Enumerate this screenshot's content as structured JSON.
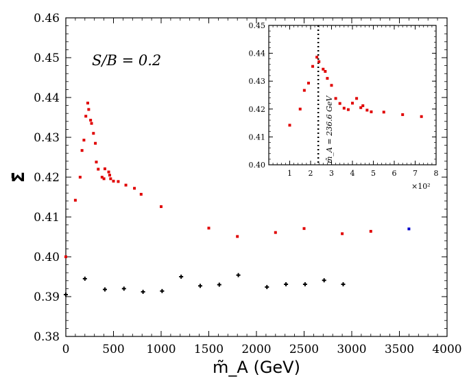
{
  "chart_data": [
    {
      "type": "scatter",
      "xlabel": "m̃_A (GeV)",
      "ylabel": "Σ̄",
      "xlim": [
        0,
        4000
      ],
      "ylim": [
        0.38,
        0.46
      ],
      "xticks": [
        "0",
        "500",
        "1000",
        "1500",
        "2000",
        "2500",
        "3000",
        "3500",
        "4000"
      ],
      "yticks": [
        "0.38",
        "0.39",
        "0.40",
        "0.41",
        "0.42",
        "0.43",
        "0.44",
        "0.45",
        "0.46"
      ],
      "annotation": "S/B = 0.2",
      "series": [
        {
          "color": "#e00000",
          "marker": "square",
          "points": [
            [
              0,
              0.4
            ],
            [
              100,
              0.4142
            ],
            [
              150,
              0.42
            ],
            [
              170,
              0.4267
            ],
            [
              190,
              0.4293
            ],
            [
              210,
              0.4353
            ],
            [
              230,
              0.4386
            ],
            [
              240,
              0.437
            ],
            [
              260,
              0.4343
            ],
            [
              270,
              0.4335
            ],
            [
              290,
              0.431
            ],
            [
              310,
              0.4285
            ],
            [
              320,
              0.4238
            ],
            [
              340,
              0.422
            ],
            [
              380,
              0.42
            ],
            [
              400,
              0.4196
            ],
            [
              410,
              0.4221
            ],
            [
              450,
              0.4213
            ],
            [
              460,
              0.4205
            ],
            [
              470,
              0.4196
            ],
            [
              500,
              0.419
            ],
            [
              550,
              0.4189
            ],
            [
              630,
              0.418
            ],
            [
              720,
              0.4172
            ],
            [
              790,
              0.4157
            ],
            [
              1000,
              0.4126
            ],
            [
              1500,
              0.4072
            ],
            [
              1800,
              0.4051
            ],
            [
              2200,
              0.4061
            ],
            [
              2500,
              0.4071
            ],
            [
              2900,
              0.4058
            ],
            [
              3200,
              0.4064
            ]
          ]
        },
        {
          "color": "#000000",
          "marker": "plus",
          "points": [
            [
              0,
              0.3905
            ],
            [
              200,
              0.3945
            ],
            [
              410,
              0.3918
            ],
            [
              610,
              0.392
            ],
            [
              810,
              0.3912
            ],
            [
              1010,
              0.3914
            ],
            [
              1210,
              0.395
            ],
            [
              1410,
              0.3927
            ],
            [
              1610,
              0.393
            ],
            [
              1810,
              0.3954
            ],
            [
              2110,
              0.3924
            ],
            [
              2310,
              0.3931
            ],
            [
              2510,
              0.3931
            ],
            [
              2710,
              0.3941
            ],
            [
              2910,
              0.3931
            ]
          ]
        },
        {
          "color": "#0000cc",
          "marker": "square",
          "points": [
            [
              3600,
              0.407
            ]
          ]
        }
      ]
    },
    {
      "type": "scatter",
      "position": "inset top-right",
      "xlim": [
        0,
        8
      ],
      "ylim": [
        0.4,
        0.45
      ],
      "xticks": [
        "1",
        "2",
        "3",
        "4",
        "5",
        "6",
        "7",
        "8"
      ],
      "yticks": [
        "0.40",
        "0.41",
        "0.42",
        "0.43",
        "0.44",
        "0.45"
      ],
      "x_multiplier": "×10²",
      "vline": {
        "x": 2.366,
        "style": "dotted",
        "label": "m̃_A = 236.6 GeV"
      },
      "series": [
        {
          "color": "#e00000",
          "marker": "square",
          "points": [
            [
              1.0,
              0.4142
            ],
            [
              1.5,
              0.42
            ],
            [
              1.7,
              0.4267
            ],
            [
              1.9,
              0.4293
            ],
            [
              2.1,
              0.4353
            ],
            [
              2.3,
              0.4386
            ],
            [
              2.4,
              0.437
            ],
            [
              2.6,
              0.4343
            ],
            [
              2.7,
              0.4335
            ],
            [
              2.8,
              0.431
            ],
            [
              3.0,
              0.4285
            ],
            [
              3.2,
              0.4238
            ],
            [
              3.4,
              0.422
            ],
            [
              3.6,
              0.4203
            ],
            [
              3.8,
              0.4198
            ],
            [
              4.0,
              0.4221
            ],
            [
              4.2,
              0.4238
            ],
            [
              4.4,
              0.4205
            ],
            [
              4.5,
              0.4212
            ],
            [
              4.7,
              0.4196
            ],
            [
              4.9,
              0.419
            ],
            [
              5.5,
              0.4189
            ],
            [
              6.4,
              0.418
            ],
            [
              7.3,
              0.4173
            ]
          ]
        }
      ]
    }
  ]
}
